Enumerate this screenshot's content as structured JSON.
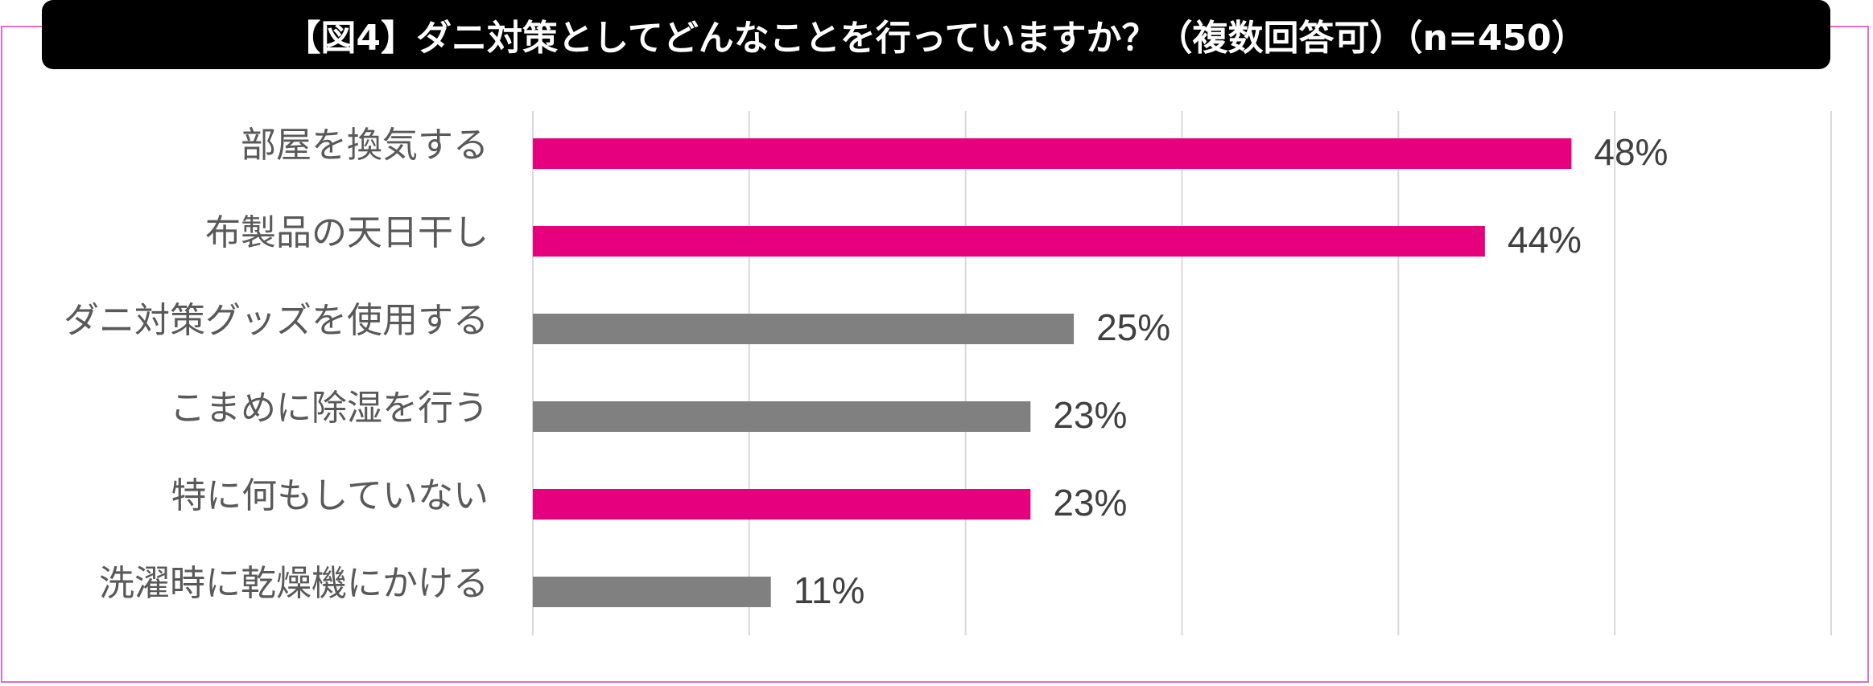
{
  "chart_data": {
    "type": "bar",
    "orientation": "horizontal",
    "title": "【図4】ダニ対策としてどんなことを行っていますか？（複数回答可）（n=450）",
    "categories": [
      "部屋を換気する",
      "布製品の天日干し",
      "ダニ対策グッズを使用する",
      "こまめに除湿を行う",
      "特に何もしていない",
      "洗濯時に乾燥機にかける"
    ],
    "values": [
      48,
      44,
      25,
      23,
      23,
      11
    ],
    "value_labels": [
      "48%",
      "44%",
      "25%",
      "23%",
      "23%",
      "11%"
    ],
    "bar_colors": [
      "#e6007e",
      "#e6007e",
      "#808080",
      "#808080",
      "#e6007e",
      "#808080"
    ],
    "xlim": [
      0,
      60
    ],
    "grid_step": 10,
    "grid": true,
    "legend": "none"
  },
  "colors": {
    "highlight": "#e6007e",
    "neutral": "#808080",
    "gridline": "#d9d9d9",
    "frame": "#e26ad0",
    "title_bg": "#000000",
    "title_text": "#ffffff"
  }
}
